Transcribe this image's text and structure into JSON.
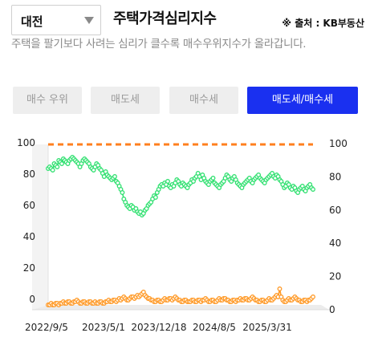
{
  "region": {
    "value": "대전"
  },
  "header": {
    "title": "주택가격심리지수",
    "source": "※ 출처 : KB부동산"
  },
  "description": "주택을 팔기보다 사려는 심리가 클수록 매수우위지수가 올라갑니다.",
  "tabs": [
    {
      "label": "매수 우위",
      "active": false
    },
    {
      "label": "매도세",
      "active": false
    },
    {
      "label": "매수세",
      "active": false
    },
    {
      "label": "매도세/매수세",
      "active": true
    }
  ],
  "colors": {
    "accent": "#1a30f0",
    "reference_line": "#ff7f1e",
    "buyers": "#30e070",
    "sellers": "#ff9a28"
  },
  "chart_data": {
    "type": "line",
    "x_start": "2022/9/5",
    "x_end": "2025/8/1",
    "x_tick_labels": [
      "2022/9/5",
      "2023/5/1",
      "2023/12/18",
      "2024/8/5",
      "2025/3/31"
    ],
    "y_left": {
      "lim": [
        0,
        100
      ],
      "ticks": [
        "0",
        "20",
        "40",
        "60",
        "80",
        "100"
      ]
    },
    "y_right": {
      "lim": [
        0,
        100
      ],
      "ticks": [
        "0",
        "20",
        "40",
        "60",
        "80",
        "100"
      ]
    },
    "reference_line": 100,
    "series": [
      {
        "color": "#30e070",
        "values": [
          85,
          86,
          85,
          84,
          88,
          87,
          86,
          90,
          89,
          88,
          91,
          90,
          89,
          88,
          90,
          91,
          92,
          91,
          90,
          89,
          88,
          86,
          88,
          90,
          91,
          90,
          89,
          88,
          86,
          85,
          84,
          86,
          88,
          87,
          85,
          84,
          82,
          80,
          83,
          81,
          80,
          79,
          78,
          79,
          80,
          77,
          76,
          74,
          72,
          70,
          66,
          64,
          62,
          61,
          60,
          62,
          61,
          59,
          60,
          58,
          57,
          58,
          56,
          57,
          59,
          60,
          62,
          63,
          64,
          66,
          68,
          67,
          70,
          72,
          74,
          75,
          74,
          76,
          75,
          77,
          74,
          73,
          75,
          74,
          76,
          78,
          77,
          75,
          74,
          76,
          75,
          74,
          73,
          75,
          76,
          78,
          77,
          79,
          80,
          82,
          80,
          78,
          81,
          79,
          77,
          76,
          75,
          77,
          78,
          79,
          76,
          75,
          74,
          73,
          75,
          76,
          77,
          79,
          81,
          80,
          78,
          77,
          79,
          80,
          78,
          76,
          75,
          74,
          73,
          75,
          76,
          77,
          78,
          79,
          77,
          76,
          78,
          79,
          80,
          81,
          79,
          78,
          77,
          76,
          78,
          79,
          80,
          81,
          82,
          80,
          79,
          81,
          80,
          78,
          77,
          75,
          73,
          74,
          76,
          75,
          73,
          72,
          74,
          73,
          71,
          70,
          72,
          73,
          74,
          72,
          71,
          73,
          74,
          75,
          73,
          72
        ]
      },
      {
        "color": "#ff9a28",
        "values": [
          0,
          0,
          1,
          0,
          0,
          1,
          1,
          0,
          1,
          1,
          2,
          1,
          1,
          2,
          2,
          1,
          1,
          2,
          2,
          3,
          2,
          1,
          1,
          2,
          2,
          1,
          1,
          2,
          2,
          1,
          1,
          2,
          1,
          1,
          2,
          2,
          1,
          1,
          2,
          2,
          3,
          2,
          2,
          3,
          3,
          2,
          3,
          4,
          3,
          4,
          5,
          4,
          3,
          3,
          4,
          5,
          5,
          4,
          5,
          6,
          5,
          6,
          7,
          8,
          6,
          5,
          4,
          4,
          3,
          3,
          2,
          2,
          3,
          3,
          2,
          2,
          3,
          4,
          3,
          3,
          4,
          4,
          3,
          4,
          5,
          4,
          3,
          3,
          2,
          2,
          3,
          3,
          2,
          2,
          2,
          3,
          3,
          2,
          2,
          3,
          3,
          2,
          3,
          3,
          4,
          3,
          2,
          2,
          3,
          3,
          2,
          2,
          3,
          4,
          3,
          3,
          4,
          4,
          3,
          3,
          2,
          2,
          3,
          3,
          2,
          3,
          3,
          4,
          3,
          3,
          4,
          4,
          3,
          3,
          4,
          5,
          4,
          3,
          3,
          2,
          2,
          3,
          3,
          2,
          2,
          3,
          4,
          3,
          3,
          4,
          5,
          6,
          5,
          10,
          5,
          3,
          2,
          2,
          3,
          4,
          3,
          3,
          4,
          5,
          4,
          3,
          3,
          2,
          2,
          3,
          3,
          2,
          3,
          3,
          4,
          5
        ]
      }
    ]
  }
}
